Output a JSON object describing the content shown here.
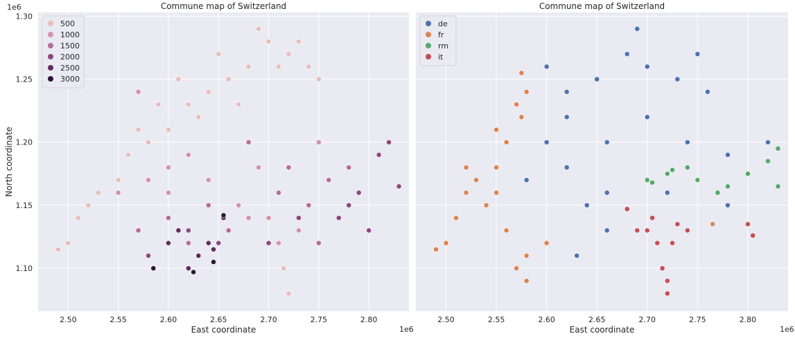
{
  "chart_data": [
    {
      "type": "scatter",
      "title": "Commune map of Switzerland",
      "xlabel": "East coordinate",
      "ylabel": "North coordinate",
      "x_offset_label": "1e6",
      "y_offset_label": "1e6",
      "xlim": [
        2.47,
        2.84
      ],
      "ylim": [
        1.066,
        1.303
      ],
      "xticks": [
        "2.50",
        "2.55",
        "2.60",
        "2.65",
        "2.70",
        "2.75",
        "2.80"
      ],
      "yticks": [
        "1.10",
        "1.15",
        "1.20",
        "1.25",
        "1.30"
      ],
      "grid": true,
      "hue": "elevation",
      "legend_position": "top-left",
      "legend": [
        {
          "label": "500",
          "color": "#e8bcbc"
        },
        {
          "label": "1000",
          "color": "#d194a6"
        },
        {
          "label": "1500",
          "color": "#b26e94"
        },
        {
          "label": "2000",
          "color": "#8a4a7f"
        },
        {
          "label": "2500",
          "color": "#5e2b5f"
        },
        {
          "label": "3000",
          "color": "#2d1538"
        }
      ],
      "series": [
        {
          "name": "500",
          "color": "#e8bcbc",
          "points": [
            [
              2.49,
              1.115
            ],
            [
              2.5,
              1.12
            ],
            [
              2.51,
              1.14
            ],
            [
              2.53,
              1.16
            ],
            [
              2.55,
              1.17
            ],
            [
              2.56,
              1.19
            ],
            [
              2.58,
              1.2
            ],
            [
              2.6,
              1.21
            ],
            [
              2.62,
              1.23
            ],
            [
              2.64,
              1.24
            ],
            [
              2.66,
              1.25
            ],
            [
              2.68,
              1.26
            ],
            [
              2.7,
              1.28
            ],
            [
              2.72,
              1.27
            ],
            [
              2.74,
              1.26
            ],
            [
              2.61,
              1.25
            ],
            [
              2.57,
              1.21
            ],
            [
              2.52,
              1.15
            ],
            [
              2.63,
              1.22
            ],
            [
              2.67,
              1.23
            ],
            [
              2.71,
              1.26
            ],
            [
              2.73,
              1.28
            ],
            [
              2.59,
              1.23
            ],
            [
              2.65,
              1.27
            ],
            [
              2.69,
              1.29
            ],
            [
              2.715,
              1.1
            ],
            [
              2.72,
              1.08
            ],
            [
              2.75,
              1.25
            ]
          ]
        },
        {
          "name": "1000",
          "color": "#d194a6",
          "points": [
            [
              2.58,
              1.17
            ],
            [
              2.62,
              1.19
            ],
            [
              2.6,
              1.18
            ],
            [
              2.64,
              1.17
            ],
            [
              2.57,
              1.24
            ],
            [
              2.55,
              1.16
            ],
            [
              2.7,
              1.14
            ],
            [
              2.73,
              1.13
            ],
            [
              2.67,
              1.15
            ],
            [
              2.75,
              1.2
            ],
            [
              2.6,
              1.16
            ],
            [
              2.69,
              1.18
            ],
            [
              2.68,
              1.14
            ],
            [
              2.71,
              1.12
            ]
          ]
        },
        {
          "name": "1500",
          "color": "#b26e94",
          "points": [
            [
              2.57,
              1.13
            ],
            [
              2.62,
              1.12
            ],
            [
              2.64,
              1.15
            ],
            [
              2.71,
              1.16
            ],
            [
              2.76,
              1.17
            ],
            [
              2.78,
              1.18
            ],
            [
              2.68,
              1.2
            ],
            [
              2.72,
              1.18
            ],
            [
              2.75,
              1.12
            ],
            [
              2.66,
              1.13
            ],
            [
              2.6,
              1.14
            ],
            [
              2.74,
              1.15
            ]
          ]
        },
        {
          "name": "2000",
          "color": "#8a4a7f",
          "points": [
            [
              2.58,
              1.11
            ],
            [
              2.6,
              1.12
            ],
            [
              2.62,
              1.13
            ],
            [
              2.65,
              1.12
            ],
            [
              2.7,
              1.12
            ],
            [
              2.73,
              1.14
            ],
            [
              2.78,
              1.15
            ],
            [
              2.79,
              1.16
            ],
            [
              2.8,
              1.13
            ],
            [
              2.82,
              1.2
            ],
            [
              2.83,
              1.165
            ],
            [
              2.81,
              1.19
            ],
            [
              2.77,
              1.14
            ]
          ]
        },
        {
          "name": "2500",
          "color": "#5e2b5f",
          "points": [
            [
              2.63,
              1.11
            ],
            [
              2.64,
              1.12
            ],
            [
              2.655,
              1.14
            ],
            [
              2.61,
              1.13
            ],
            [
              2.62,
              1.1
            ],
            [
              2.645,
              1.115
            ],
            [
              2.6,
              1.12
            ]
          ]
        },
        {
          "name": "3000",
          "color": "#2d1538",
          "points": [
            [
              2.625,
              1.097
            ],
            [
              2.655,
              1.142
            ],
            [
              2.585,
              1.1
            ],
            [
              2.645,
              1.105
            ]
          ]
        }
      ]
    },
    {
      "type": "scatter",
      "title": "Commune map of Switzerland",
      "xlabel": "East coordinate",
      "ylabel": "",
      "x_offset_label": "1e6",
      "xlim": [
        2.47,
        2.84
      ],
      "ylim": [
        1.066,
        1.303
      ],
      "xticks": [
        "2.50",
        "2.55",
        "2.60",
        "2.65",
        "2.70",
        "2.75",
        "2.80"
      ],
      "yticks": [],
      "grid": true,
      "hue": "language",
      "legend_position": "top-left",
      "legend": [
        {
          "label": "de",
          "color": "#4c72b0"
        },
        {
          "label": "fr",
          "color": "#dd8452"
        },
        {
          "label": "rm",
          "color": "#55a868"
        },
        {
          "label": "it",
          "color": "#c44e52"
        }
      ],
      "series": [
        {
          "name": "de",
          "color": "#4c72b0",
          "points": [
            [
              2.6,
              1.2
            ],
            [
              2.62,
              1.22
            ],
            [
              2.65,
              1.25
            ],
            [
              2.68,
              1.27
            ],
            [
              2.7,
              1.26
            ],
            [
              2.73,
              1.25
            ],
            [
              2.76,
              1.24
            ],
            [
              2.62,
              1.18
            ],
            [
              2.66,
              1.2
            ],
            [
              2.7,
              1.22
            ],
            [
              2.74,
              1.2
            ],
            [
              2.78,
              1.19
            ],
            [
              2.58,
              1.17
            ],
            [
              2.64,
              1.15
            ],
            [
              2.66,
              1.13
            ],
            [
              2.63,
              1.11
            ],
            [
              2.82,
              1.2
            ],
            [
              2.69,
              1.29
            ],
            [
              2.6,
              1.26
            ],
            [
              2.72,
              1.16
            ],
            [
              2.78,
              1.15
            ],
            [
              2.66,
              1.16
            ],
            [
              2.62,
              1.24
            ],
            [
              2.75,
              1.27
            ]
          ]
        },
        {
          "name": "fr",
          "color": "#dd8452",
          "points": [
            [
              2.49,
              1.115
            ],
            [
              2.5,
              1.12
            ],
            [
              2.51,
              1.14
            ],
            [
              2.52,
              1.16
            ],
            [
              2.53,
              1.17
            ],
            [
              2.55,
              1.18
            ],
            [
              2.56,
              1.2
            ],
            [
              2.57,
              1.23
            ],
            [
              2.575,
              1.255
            ],
            [
              2.58,
              1.24
            ],
            [
              2.54,
              1.15
            ],
            [
              2.55,
              1.16
            ],
            [
              2.56,
              1.13
            ],
            [
              2.58,
              1.11
            ],
            [
              2.6,
              1.12
            ],
            [
              2.58,
              1.09
            ],
            [
              2.57,
              1.1
            ],
            [
              2.52,
              1.18
            ],
            [
              2.55,
              1.21
            ],
            [
              2.575,
              1.22
            ],
            [
              2.765,
              1.135
            ]
          ]
        },
        {
          "name": "rm",
          "color": "#55a868",
          "points": [
            [
              2.7,
              1.17
            ],
            [
              2.72,
              1.175
            ],
            [
              2.74,
              1.18
            ],
            [
              2.75,
              1.17
            ],
            [
              2.77,
              1.16
            ],
            [
              2.78,
              1.165
            ],
            [
              2.8,
              1.175
            ],
            [
              2.82,
              1.185
            ],
            [
              2.83,
              1.195
            ],
            [
              2.83,
              1.165
            ],
            [
              2.705,
              1.168
            ],
            [
              2.725,
              1.178
            ]
          ]
        },
        {
          "name": "it",
          "color": "#c44e52",
          "points": [
            [
              2.7,
              1.13
            ],
            [
              2.71,
              1.12
            ],
            [
              2.715,
              1.1
            ],
            [
              2.72,
              1.09
            ],
            [
              2.72,
              1.08
            ],
            [
              2.725,
              1.12
            ],
            [
              2.73,
              1.135
            ],
            [
              2.705,
              1.14
            ],
            [
              2.69,
              1.13
            ],
            [
              2.74,
              1.13
            ],
            [
              2.8,
              1.135
            ],
            [
              2.805,
              1.126
            ],
            [
              2.68,
              1.147
            ]
          ]
        }
      ]
    }
  ]
}
